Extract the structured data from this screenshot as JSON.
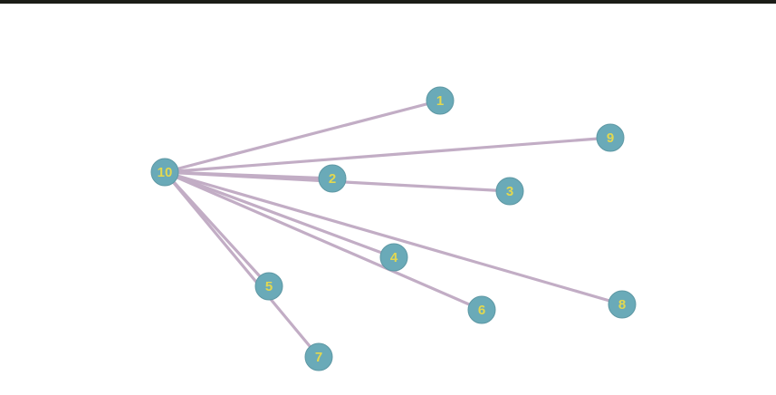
{
  "graph": {
    "colors": {
      "node_fill": "#6aaab8",
      "node_label": "#e3d84f",
      "edge": "#c2adc5",
      "top_bar": "#1c1d17",
      "background": "#ffffff"
    },
    "nodes": [
      {
        "id": "10",
        "label": "10"
      },
      {
        "id": "1",
        "label": "1"
      },
      {
        "id": "9",
        "label": "9"
      },
      {
        "id": "2",
        "label": "2"
      },
      {
        "id": "3",
        "label": "3"
      },
      {
        "id": "4",
        "label": "4"
      },
      {
        "id": "6",
        "label": "6"
      },
      {
        "id": "8",
        "label": "8"
      },
      {
        "id": "5",
        "label": "5"
      },
      {
        "id": "7",
        "label": "7"
      }
    ],
    "edges": [
      {
        "source": "10",
        "target": "1"
      },
      {
        "source": "10",
        "target": "9"
      },
      {
        "source": "10",
        "target": "2"
      },
      {
        "source": "10",
        "target": "3"
      },
      {
        "source": "10",
        "target": "4"
      },
      {
        "source": "10",
        "target": "6"
      },
      {
        "source": "10",
        "target": "8"
      },
      {
        "source": "10",
        "target": "5"
      },
      {
        "source": "10",
        "target": "7"
      }
    ]
  }
}
